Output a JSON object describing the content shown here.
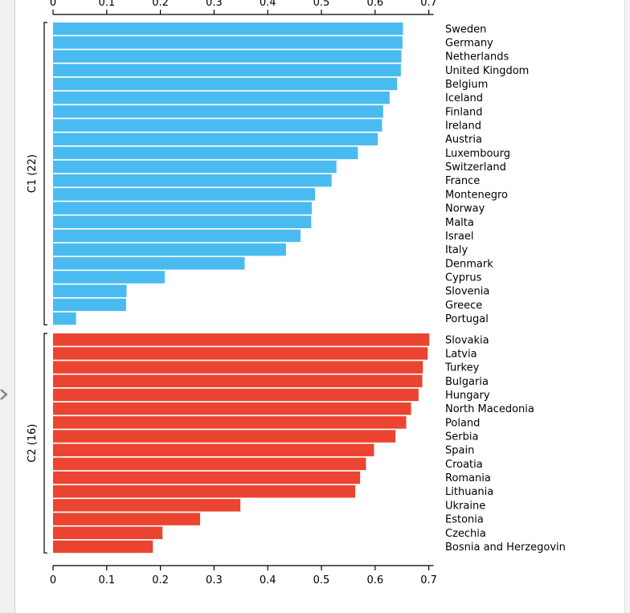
{
  "chart_data": {
    "type": "bar",
    "orientation": "horizontal",
    "xlim": [
      0,
      0.7
    ],
    "x_ticks": [
      "0",
      "0.1",
      "0.2",
      "0.3",
      "0.4",
      "0.5",
      "0.6",
      "0.7"
    ],
    "grid": false,
    "groups": [
      {
        "label": "C1 (22)",
        "color": "#4ABBF0",
        "categories": [
          "Sweden",
          "Germany",
          "Netherlands",
          "United Kingdom",
          "Belgium",
          "Iceland",
          "Finland",
          "Ireland",
          "Austria",
          "Luxembourg",
          "Switzerland",
          "France",
          "Montenegro",
          "Norway",
          "Malta",
          "Israel",
          "Italy",
          "Denmark",
          "Cyprus",
          "Slovenia",
          "Greece",
          "Portugal"
        ],
        "values": [
          0.652,
          0.651,
          0.649,
          0.648,
          0.641,
          0.627,
          0.615,
          0.613,
          0.605,
          0.568,
          0.528,
          0.519,
          0.488,
          0.482,
          0.481,
          0.461,
          0.434,
          0.357,
          0.208,
          0.137,
          0.136,
          0.043
        ]
      },
      {
        "label": "C2 (16)",
        "color": "#EB4430",
        "categories": [
          "Slovakia",
          "Latvia",
          "Turkey",
          "Bulgaria",
          "Hungary",
          "North Macedonia",
          "Poland",
          "Serbia",
          "Spain",
          "Croatia",
          "Romania",
          "Lithuania",
          "Ukraine",
          "Estonia",
          "Czechia",
          "Bosnia and Herzegovin"
        ],
        "values": [
          0.701,
          0.698,
          0.689,
          0.688,
          0.681,
          0.667,
          0.658,
          0.638,
          0.598,
          0.583,
          0.572,
          0.563,
          0.349,
          0.274,
          0.204,
          0.186
        ]
      }
    ]
  }
}
